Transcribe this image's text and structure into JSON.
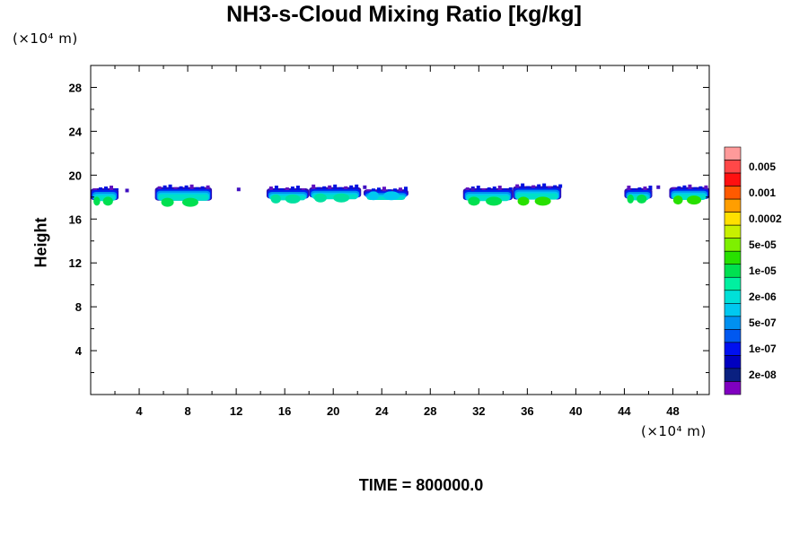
{
  "chart_data": {
    "type": "heatmap",
    "title": "NH3-s-Cloud Mixing Ratio [kg/kg]",
    "ylabel": "Height",
    "xlabel": "",
    "y_unit": "(×10⁴ m)",
    "x_unit": "(×10⁴ m)",
    "footer": "TIME = 800000.0",
    "xlim": [
      0,
      51
    ],
    "ylim": [
      0,
      30
    ],
    "x_ticks": [
      "4",
      "8",
      "12",
      "16",
      "20",
      "24",
      "28",
      "32",
      "36",
      "40",
      "44",
      "48"
    ],
    "x_tick_values": [
      4,
      8,
      12,
      16,
      20,
      24,
      28,
      32,
      36,
      40,
      44,
      48
    ],
    "y_ticks": [
      "4",
      "8",
      "12",
      "16",
      "20",
      "24",
      "28"
    ],
    "y_tick_values": [
      4,
      8,
      12,
      16,
      20,
      24,
      28
    ],
    "colorbar": {
      "labels": [
        "0.005",
        "0.001",
        "0.0002",
        "5e-05",
        "1e-05",
        "2e-06",
        "5e-07",
        "1e-07",
        "2e-08"
      ],
      "colors": [
        "#ff9a9a",
        "#ff4848",
        "#ff1010",
        "#ff5a00",
        "#ff9e00",
        "#ffe000",
        "#c8f000",
        "#7ef000",
        "#28e000",
        "#00e050",
        "#00f0a0",
        "#00e0d8",
        "#00c8f0",
        "#0090f0",
        "#0058f0",
        "#0010f0",
        "#0000c0",
        "#0a2080",
        "#8000c0"
      ]
    },
    "cloud_bands": [
      {
        "x0": 0.0,
        "x1": 2.3,
        "y0": 17.3,
        "y1": 18.8,
        "base_color": "#00e050"
      },
      {
        "x0": 5.3,
        "x1": 10.0,
        "y0": 17.2,
        "y1": 18.9,
        "base_color": "#00e050"
      },
      {
        "x0": 14.5,
        "x1": 18.0,
        "y0": 17.5,
        "y1": 18.8,
        "base_color": "#00e0a0"
      },
      {
        "x0": 18.0,
        "x1": 22.3,
        "y0": 17.6,
        "y1": 18.9,
        "base_color": "#00e0a0"
      },
      {
        "x0": 22.5,
        "x1": 26.2,
        "y0": 17.8,
        "y1": 18.7,
        "base_color": "#00c8f0"
      },
      {
        "x0": 30.7,
        "x1": 34.8,
        "y0": 17.3,
        "y1": 18.8,
        "base_color": "#00e050"
      },
      {
        "x0": 34.8,
        "x1": 38.8,
        "y0": 17.3,
        "y1": 19.0,
        "base_color": "#28e000"
      },
      {
        "x0": 44.0,
        "x1": 46.3,
        "y0": 17.5,
        "y1": 18.8,
        "base_color": "#00e050"
      },
      {
        "x0": 47.7,
        "x1": 51.0,
        "y0": 17.4,
        "y1": 18.9,
        "base_color": "#28e000"
      }
    ],
    "small_specks": [
      {
        "x": 3.0,
        "y": 18.6
      },
      {
        "x": 12.2,
        "y": 18.7
      },
      {
        "x": 22.6,
        "y": 18.9
      },
      {
        "x": 31.5,
        "y": 18.7
      },
      {
        "x": 46.8,
        "y": 18.9
      }
    ]
  }
}
